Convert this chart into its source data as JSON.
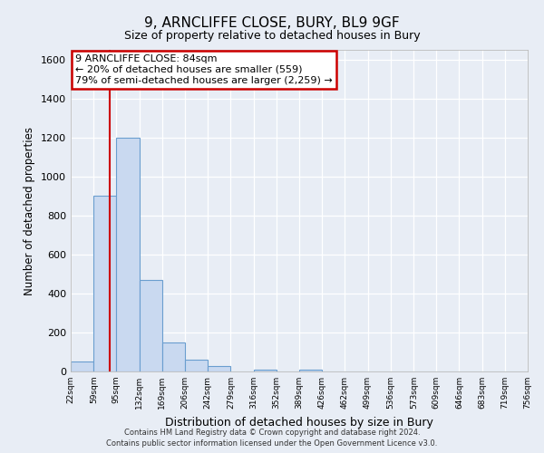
{
  "title": "9, ARNCLIFFE CLOSE, BURY, BL9 9GF",
  "subtitle": "Size of property relative to detached houses in Bury",
  "xlabel": "Distribution of detached houses by size in Bury",
  "ylabel": "Number of detached properties",
  "bin_edges": [
    22,
    59,
    95,
    132,
    169,
    206,
    242,
    279,
    316,
    352,
    389,
    426,
    462,
    499,
    536,
    573,
    609,
    646,
    683,
    719,
    756
  ],
  "bar_heights": [
    50,
    900,
    1200,
    470,
    150,
    60,
    30,
    0,
    10,
    0,
    10,
    0,
    0,
    0,
    0,
    0,
    0,
    0,
    0,
    0
  ],
  "bar_color": "#c9d9f0",
  "bar_edge_color": "#6a9ecf",
  "tick_labels": [
    "22sqm",
    "59sqm",
    "95sqm",
    "132sqm",
    "169sqm",
    "206sqm",
    "242sqm",
    "279sqm",
    "316sqm",
    "352sqm",
    "389sqm",
    "426sqm",
    "462sqm",
    "499sqm",
    "536sqm",
    "573sqm",
    "609sqm",
    "646sqm",
    "683sqm",
    "719sqm",
    "756sqm"
  ],
  "ylim": [
    0,
    1650
  ],
  "yticks": [
    0,
    200,
    400,
    600,
    800,
    1000,
    1200,
    1400,
    1600
  ],
  "vline_x": 84,
  "vline_color": "#cc0000",
  "annotation_text": "9 ARNCLIFFE CLOSE: 84sqm\n← 20% of detached houses are smaller (559)\n79% of semi-detached houses are larger (2,259) →",
  "annotation_box_color": "#ffffff",
  "annotation_box_edge": "#cc0000",
  "bg_color": "#e8edf5",
  "plot_bg_color": "#e8edf5",
  "footer_line1": "Contains HM Land Registry data © Crown copyright and database right 2024.",
  "footer_line2": "Contains public sector information licensed under the Open Government Licence v3.0."
}
